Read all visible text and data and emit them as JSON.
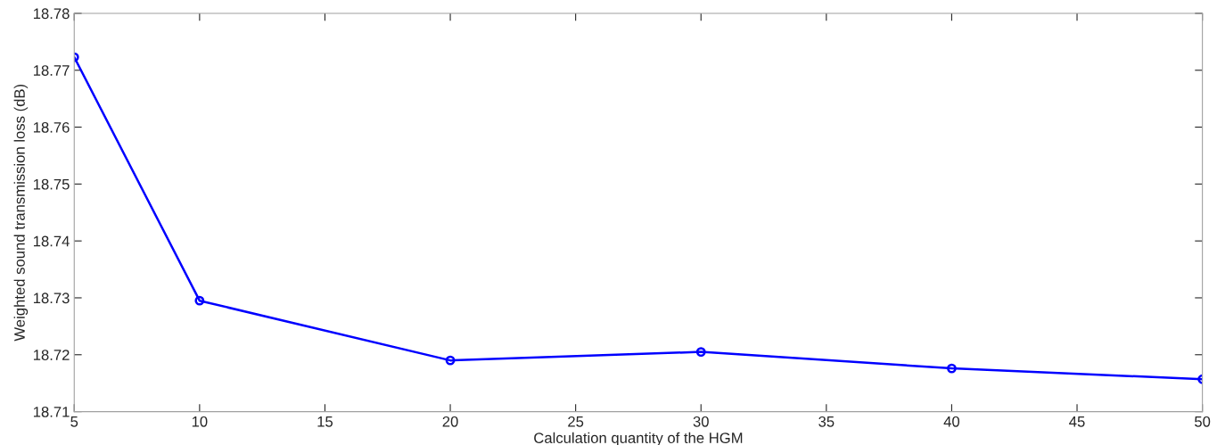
{
  "chart_data": {
    "type": "line",
    "xlabel": "Calculation quantity of the HGM",
    "ylabel": "Weighted sound transmission loss (dB)",
    "x": [
      5,
      10,
      20,
      30,
      40,
      50
    ],
    "series": [
      {
        "color": "#0000ff",
        "values": [
          18.7723,
          18.7295,
          18.719,
          18.7205,
          18.7176,
          18.7157
        ]
      }
    ],
    "xlim": [
      5,
      50
    ],
    "xticks": [
      5,
      10,
      15,
      20,
      25,
      30,
      35,
      40,
      45,
      50
    ],
    "ylim": [
      18.71,
      18.78
    ],
    "yticks": [
      18.71,
      18.72,
      18.73,
      18.74,
      18.75,
      18.76,
      18.77,
      18.78
    ],
    "grid": false,
    "marker": "circle",
    "line_style": "solid"
  }
}
